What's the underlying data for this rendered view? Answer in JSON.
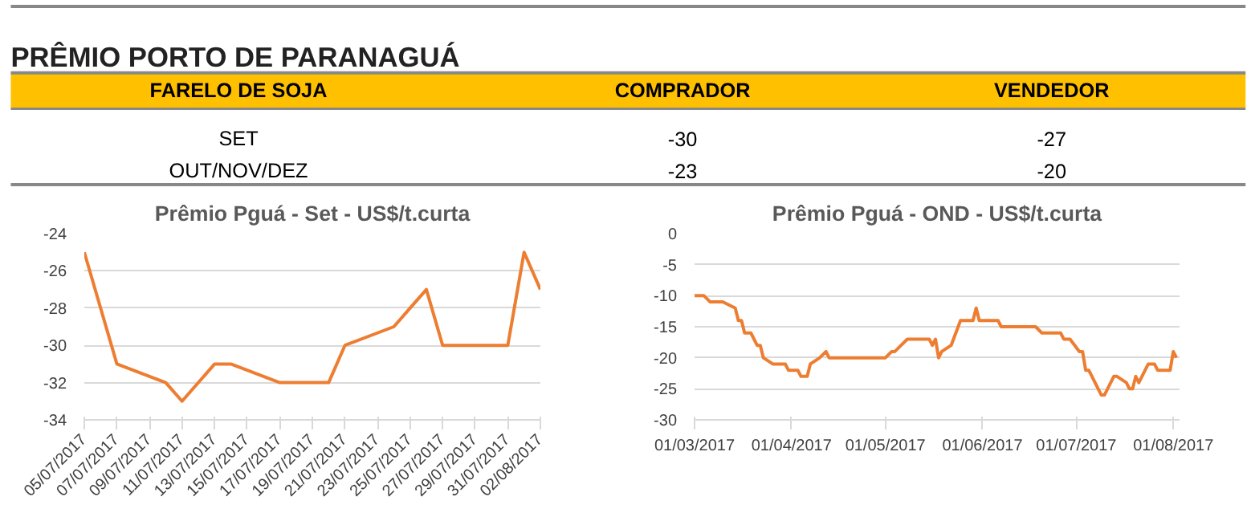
{
  "chart_data": [
    {
      "type": "other",
      "title": "PRÊMIO PORTO DE PARANAGUÁ",
      "ylabel": "FARELO DE SOJA",
      "categories": [
        "COMPRADOR",
        "VENDEDOR"
      ],
      "y_categories": [
        "SET",
        "OUT/NOV/DEZ"
      ],
      "cell_labels": [
        [
          "-30",
          "-27"
        ],
        [
          "-23",
          "-20"
        ]
      ],
      "color": "#ffc000"
    },
    {
      "type": "line",
      "title": "Prêmio Pguá - Set - US$/t.curta",
      "grid": "y",
      "ylim": [
        -34,
        -24
      ],
      "yticks": [
        -34,
        -32,
        -30,
        -28,
        -26,
        -24
      ],
      "xlim": [
        "2017-07-05",
        "2017-08-02"
      ],
      "xticks": [
        {
          "value": "2017-07-05",
          "label": "05/07/2017"
        },
        {
          "value": "2017-07-07",
          "label": "07/07/2017"
        },
        {
          "value": "2017-07-09",
          "label": "09/07/2017"
        },
        {
          "value": "2017-07-11",
          "label": "11/07/2017"
        },
        {
          "value": "2017-07-13",
          "label": "13/07/2017"
        },
        {
          "value": "2017-07-15",
          "label": "15/07/2017"
        },
        {
          "value": "2017-07-17",
          "label": "17/07/2017"
        },
        {
          "value": "2017-07-19",
          "label": "19/07/2017"
        },
        {
          "value": "2017-07-21",
          "label": "21/07/2017"
        },
        {
          "value": "2017-07-23",
          "label": "23/07/2017"
        },
        {
          "value": "2017-07-25",
          "label": "25/07/2017"
        },
        {
          "value": "2017-07-27",
          "label": "27/07/2017"
        },
        {
          "value": "2017-07-29",
          "label": "29/07/2017"
        },
        {
          "value": "2017-07-31",
          "label": "31/07/2017"
        },
        {
          "value": "2017-08-02",
          "label": "02/08/2017"
        }
      ],
      "series": [
        {
          "color": "#ed7d31",
          "x": [
            "2017-07-05",
            "2017-07-07",
            "2017-07-10",
            "2017-07-11",
            "2017-07-13",
            "2017-07-14",
            "2017-07-17",
            "2017-07-20",
            "2017-07-21",
            "2017-07-24",
            "2017-07-26",
            "2017-07-27",
            "2017-07-31",
            "2017-08-01",
            "2017-08-02"
          ],
          "values": [
            -25,
            -31,
            -32,
            -33,
            -31,
            -31,
            -32,
            -32,
            -30,
            -29,
            -27,
            -30,
            -30,
            -25,
            -27
          ]
        }
      ]
    },
    {
      "type": "line",
      "title": "Prêmio Pguá - OND - US$/t.curta",
      "grid": "y",
      "ylim": [
        -30,
        0
      ],
      "yticks": [
        -30,
        -25,
        -20,
        -15,
        -10,
        -5,
        0
      ],
      "xlim": [
        "2017-03-01",
        "2017-08-03"
      ],
      "xticks": [
        {
          "value": "2017-03-01",
          "label": "01/03/2017"
        },
        {
          "value": "2017-04-01",
          "label": "01/04/2017"
        },
        {
          "value": "2017-05-01",
          "label": "01/05/2017"
        },
        {
          "value": "2017-06-01",
          "label": "01/06/2017"
        },
        {
          "value": "2017-07-01",
          "label": "01/07/2017"
        },
        {
          "value": "2017-08-01",
          "label": "01/08/2017"
        }
      ],
      "series": [
        {
          "color": "#ed7d31",
          "x": [
            "2017-03-01",
            "2017-03-04",
            "2017-03-06",
            "2017-03-10",
            "2017-03-14",
            "2017-03-15",
            "2017-03-16",
            "2017-03-17",
            "2017-03-19",
            "2017-03-21",
            "2017-03-22",
            "2017-03-23",
            "2017-03-26",
            "2017-03-30",
            "2017-03-31",
            "2017-04-03",
            "2017-04-04",
            "2017-04-06",
            "2017-04-07",
            "2017-04-10",
            "2017-04-12",
            "2017-04-13",
            "2017-05-01",
            "2017-05-03",
            "2017-05-04",
            "2017-05-06",
            "2017-05-08",
            "2017-05-15",
            "2017-05-16",
            "2017-05-17",
            "2017-05-18",
            "2017-05-19",
            "2017-05-22",
            "2017-05-25",
            "2017-05-29",
            "2017-05-30",
            "2017-05-31",
            "2017-06-06",
            "2017-06-07",
            "2017-06-18",
            "2017-06-20",
            "2017-06-26",
            "2017-06-27",
            "2017-06-29",
            "2017-07-02",
            "2017-07-03",
            "2017-07-04",
            "2017-07-05",
            "2017-07-09",
            "2017-07-10",
            "2017-07-13",
            "2017-07-14",
            "2017-07-17",
            "2017-07-18",
            "2017-07-19",
            "2017-07-20",
            "2017-07-21",
            "2017-07-24",
            "2017-07-26",
            "2017-07-27",
            "2017-07-31",
            "2017-08-01",
            "2017-08-02"
          ],
          "values": [
            -10,
            -10,
            -11,
            -11,
            -12,
            -14,
            -14,
            -16,
            -16,
            -18,
            -18,
            -20,
            -21,
            -21,
            -22,
            -22,
            -23,
            -23,
            -21,
            -20,
            -19,
            -20,
            -20,
            -19,
            -19,
            -18,
            -17,
            -17,
            -18,
            -17,
            -20,
            -19,
            -18,
            -14,
            -14,
            -12,
            -14,
            -14,
            -15,
            -15,
            -16,
            -16,
            -17,
            -17,
            -19,
            -19,
            -22,
            -22,
            -26,
            -26,
            -23,
            -23,
            -24,
            -25,
            -25,
            -23,
            -24,
            -21,
            -21,
            -22,
            -22,
            -19,
            -20
          ]
        }
      ]
    }
  ]
}
